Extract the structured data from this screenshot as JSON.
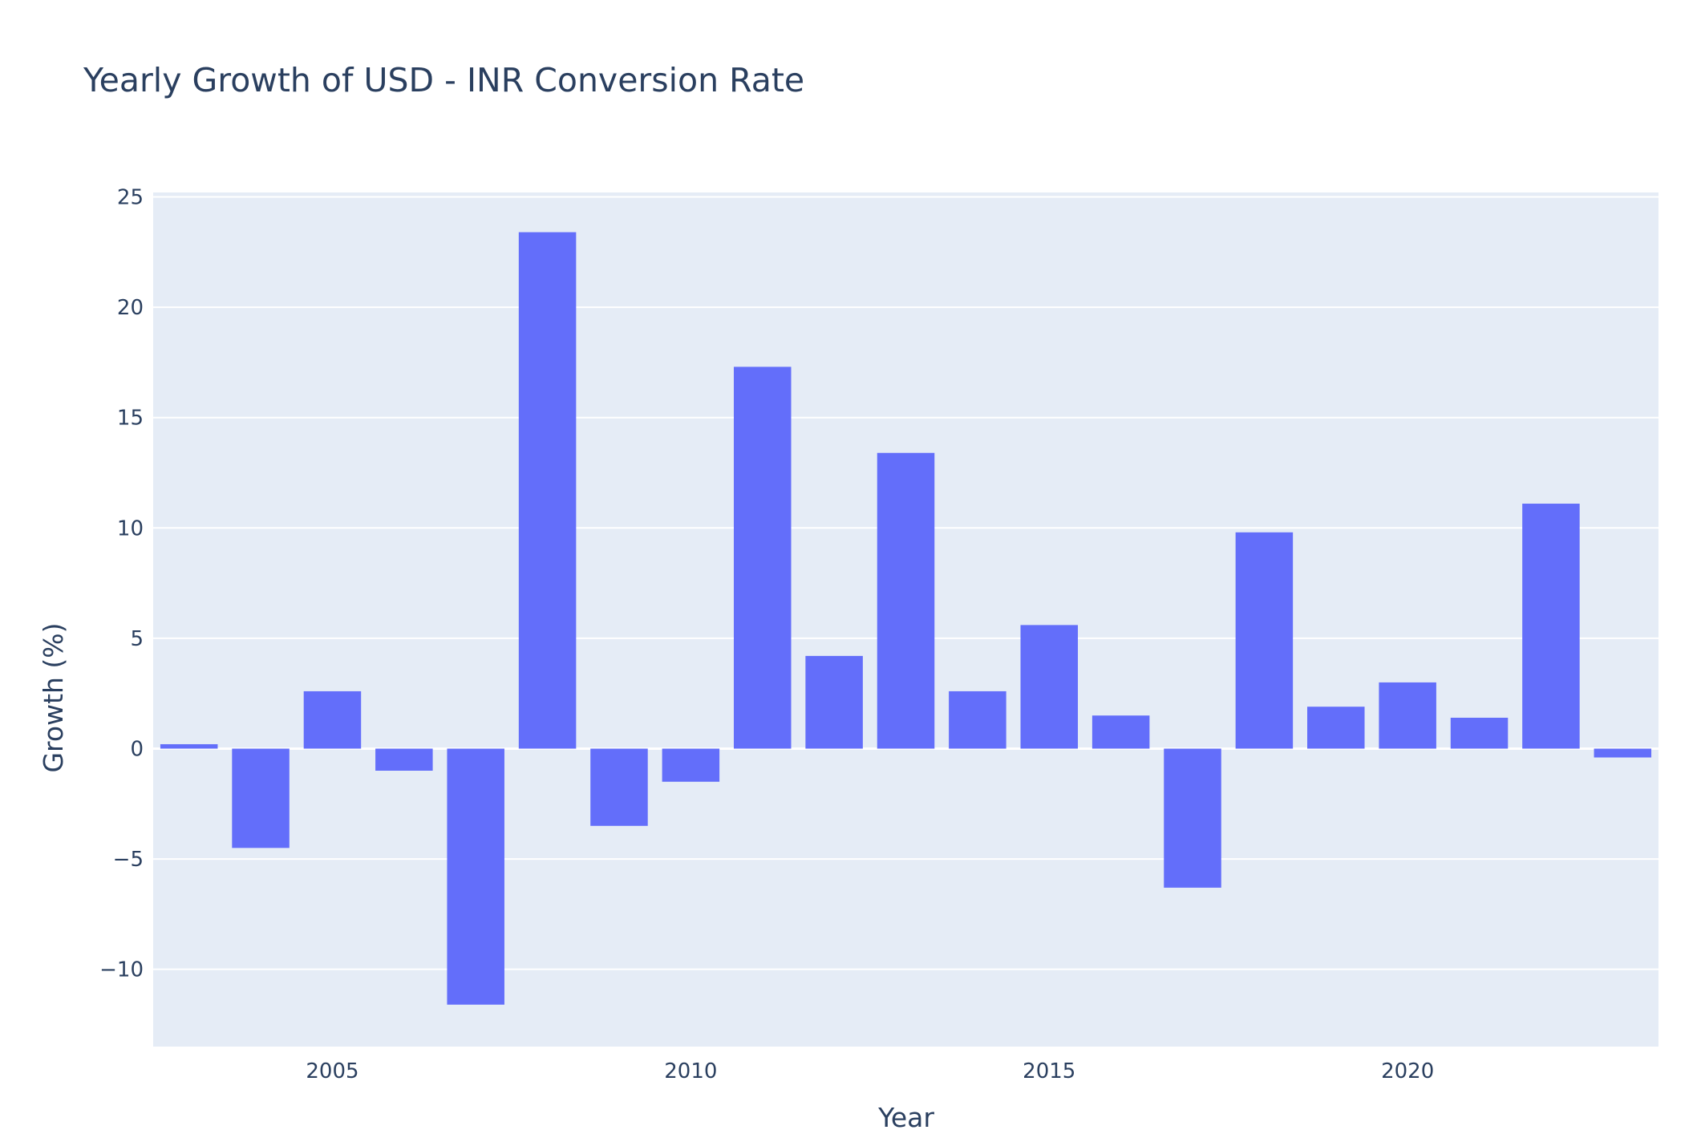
{
  "chart_data": {
    "type": "bar",
    "title": "Yearly Growth of USD - INR Conversion Rate",
    "xlabel": "Year",
    "ylabel": "Growth (%)",
    "x": [
      2003,
      2004,
      2005,
      2006,
      2007,
      2008,
      2009,
      2010,
      2011,
      2012,
      2013,
      2014,
      2015,
      2016,
      2017,
      2018,
      2019,
      2020,
      2021,
      2022,
      2023
    ],
    "values": [
      0.2,
      -4.5,
      2.6,
      -1.0,
      -11.6,
      23.4,
      -3.5,
      -1.5,
      17.3,
      4.2,
      13.4,
      2.6,
      5.6,
      1.5,
      -6.3,
      9.8,
      1.9,
      3.0,
      1.4,
      11.1,
      -0.4
    ],
    "xlim": [
      2002.5,
      2023.5
    ],
    "ylim": [
      -13.5,
      25.2
    ],
    "x_ticks": [
      2005,
      2010,
      2015,
      2020
    ],
    "y_ticks": [
      -10,
      -5,
      0,
      5,
      10,
      15,
      20,
      25
    ],
    "y_tick_labels": [
      "−10",
      "−5",
      "0",
      "5",
      "10",
      "15",
      "20",
      "25"
    ],
    "grid": true,
    "colors": {
      "bar": "#636efa",
      "plot_bg": "#e5ecf6",
      "grid": "#ffffff",
      "text": "#2a3f5f"
    }
  }
}
